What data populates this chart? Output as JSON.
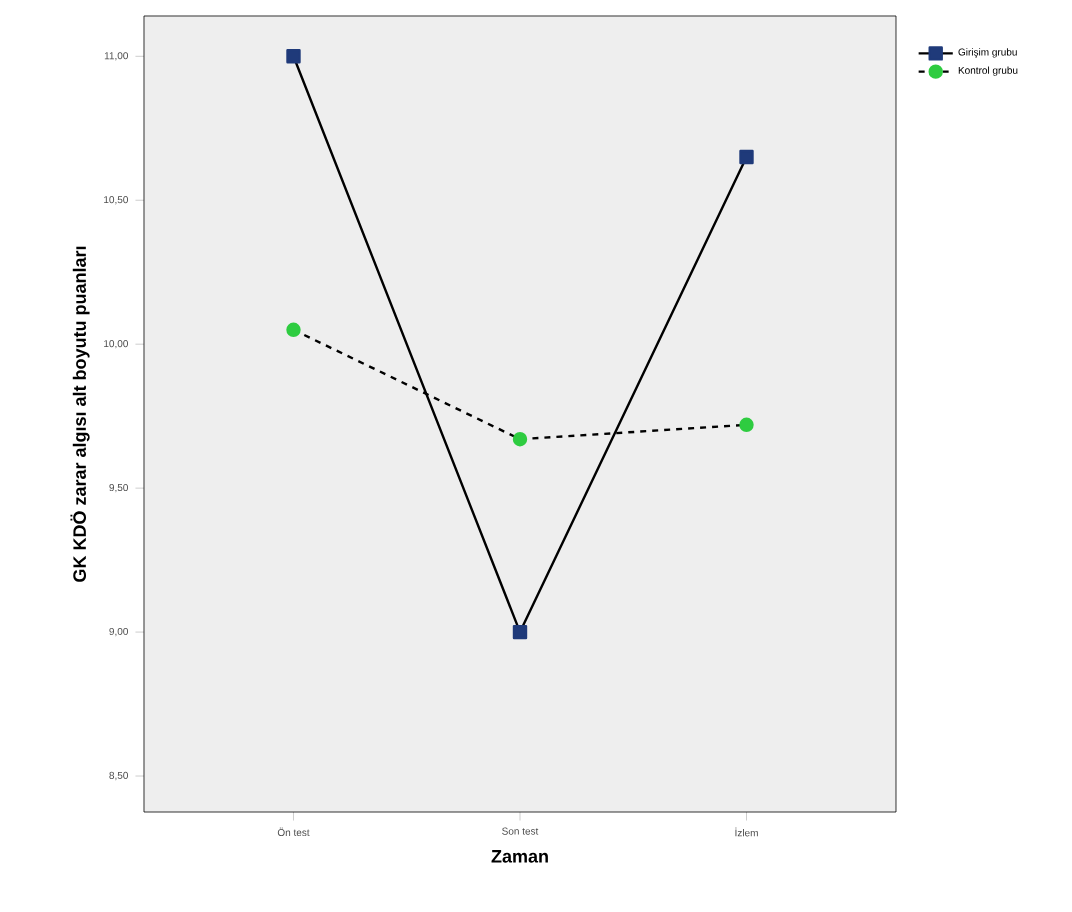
{
  "chart_data": {
    "type": "line",
    "xlabel": "Zaman",
    "ylabel": "GK KDÖ zarar algısı alt boyutu puanları",
    "categories": [
      "Ön test",
      "Son test",
      "İzlem"
    ],
    "series": [
      {
        "name": "Girişim grubu",
        "color": "#1f3a7a",
        "values": [
          11.0,
          9.0,
          10.65
        ],
        "marker": "square",
        "line_style": "solid"
      },
      {
        "name": "Kontrol grubu",
        "color": "#2ecc40",
        "values": [
          10.05,
          9.67,
          9.72
        ],
        "marker": "circle",
        "line_style": "dashed"
      }
    ],
    "ylim": [
      8.375,
      11.14
    ],
    "yticks": [
      {
        "value": 8.5,
        "label": "8,50"
      },
      {
        "value": 9.0,
        "label": "9,00"
      },
      {
        "value": 9.5,
        "label": "9,50"
      },
      {
        "value": 10.0,
        "label": "10,00"
      },
      {
        "value": 10.5,
        "label": "10,50"
      },
      {
        "value": 11.0,
        "label": "11,00"
      }
    ],
    "grid": false,
    "legend": "top right"
  }
}
